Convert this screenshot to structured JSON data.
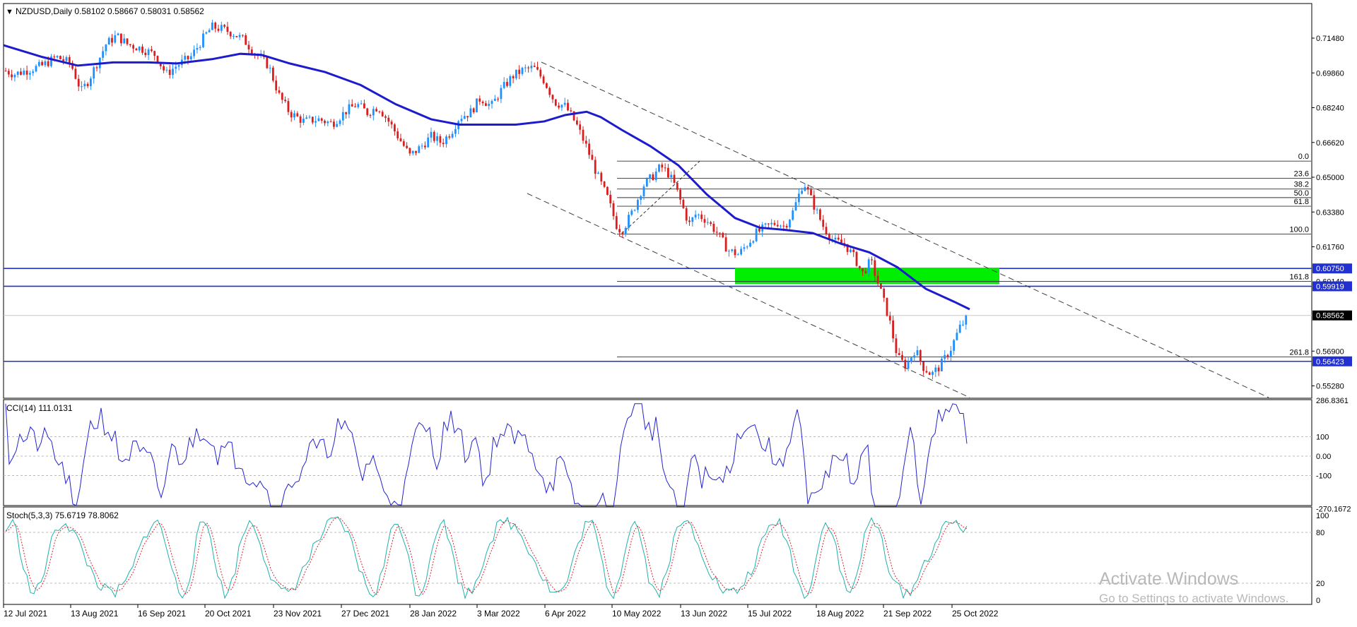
{
  "window": {
    "symbol_header": "NZDUSD,Daily  0.58102 0.58667 0.58031 0.58562",
    "menu_marker": "▼"
  },
  "price_panel": {
    "axis_labels": [
      "0.71480",
      "0.69860",
      "0.68240",
      "0.66620",
      "0.65000",
      "0.63380",
      "0.61760",
      "0.56900",
      "0.55280"
    ],
    "current_price": "0.58562",
    "horizontal_levels": [
      {
        "label": "0.60750",
        "value": 0.6075
      },
      {
        "label": "0.59919",
        "value": 0.59919
      },
      {
        "label": "0.56423",
        "value": 0.56423
      }
    ],
    "fibonacci_levels": [
      {
        "label": "0.0",
        "value": 0.6575
      },
      {
        "label": "23.6",
        "value": 0.6495
      },
      {
        "label": "38.2",
        "value": 0.6445
      },
      {
        "label": "50.0",
        "value": 0.6405
      },
      {
        "label": "61.8",
        "value": 0.6365
      },
      {
        "label": "100.0",
        "value": 0.6235
      },
      {
        "label": "161.8",
        "value": 0.6015
      },
      {
        "label": "261.8",
        "value": 0.5663
      }
    ],
    "fib_161_partial_price": "0.60140",
    "zone": {
      "from": 0.6002,
      "to": 0.6076,
      "color": "#00ee00"
    },
    "moving_average_color": "#1c1ccc",
    "up_candle_color": "#1e90ff",
    "down_candle_color": "#d81e1e",
    "level_line_color": "#2130d0"
  },
  "cci_panel": {
    "title": "CCI(14) 111.0131",
    "axis_labels": [
      "286.8361",
      "100",
      "0.00",
      "-100",
      "-270.1672"
    ],
    "line_color": "#2424d0"
  },
  "stoch_panel": {
    "title": "Stoch(5,3,3) 75.6719 78.8062",
    "axis_labels": [
      "100",
      "80",
      "20",
      "0"
    ],
    "main_color": "#20b2aa",
    "signal_color": "#e0202a"
  },
  "time_axis": {
    "labels": [
      "12 Jul 2021",
      "13 Aug 2021",
      "16 Sep 2021",
      "20 Oct 2021",
      "23 Nov 2021",
      "27 Dec 2021",
      "28 Jan 2022",
      "3 Mar 2022",
      "6 Apr 2022",
      "10 May 2022",
      "13 Jun 2022",
      "15 Jul 2022",
      "18 Aug 2022",
      "21 Sep 2022",
      "25 Oct 2022"
    ]
  },
  "watermark": {
    "line1": "Activate Windows",
    "line2": "Go to Settings to activate Windows."
  }
}
